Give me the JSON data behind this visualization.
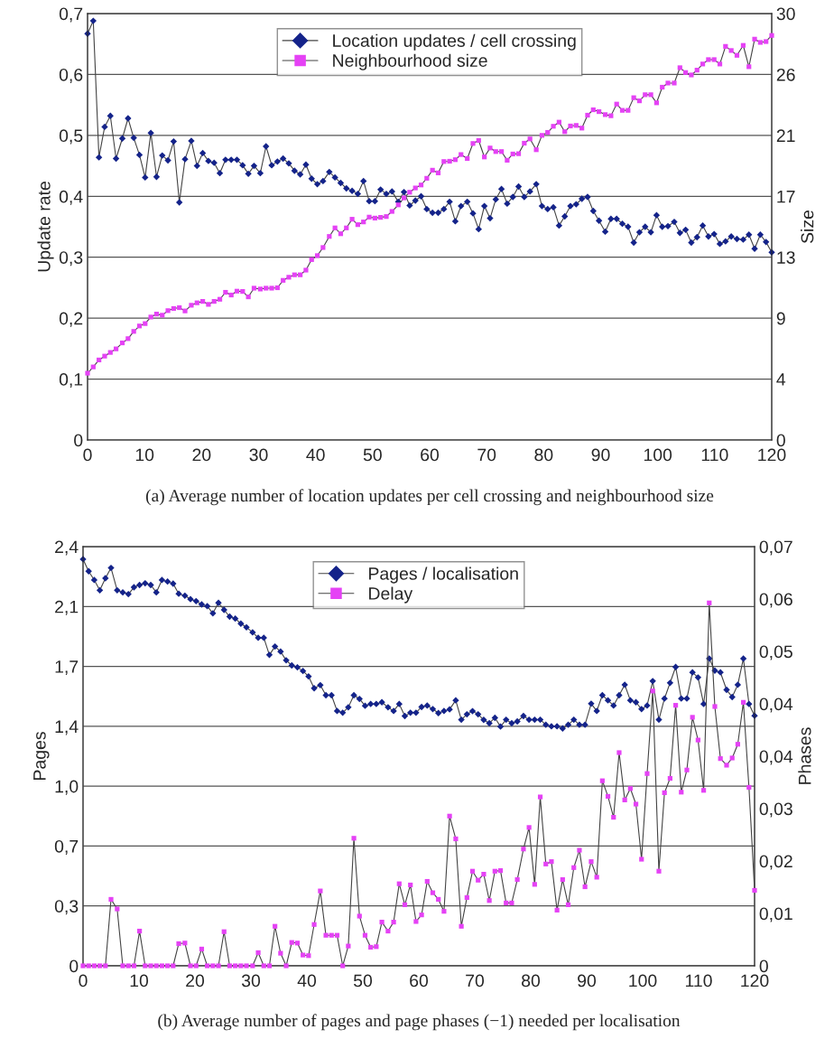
{
  "chart_data": [
    {
      "type": "line",
      "annotations": [
        "(a) Average number of location updates per cell crossing and neighbourhood size"
      ],
      "ylabel": "Update rate",
      "y2label": "Size",
      "legend": "top",
      "grid": "y",
      "xlim": [
        0,
        120
      ],
      "xticks": [
        0,
        10,
        20,
        30,
        40,
        50,
        60,
        70,
        80,
        90,
        100,
        110,
        120
      ],
      "ylim": [
        0,
        0.7
      ],
      "yticks": [
        0,
        {
          "value": 0.1,
          "label": "0,1"
        },
        {
          "value": 0.2,
          "label": "0,2"
        },
        {
          "value": 0.3,
          "label": "0,3"
        },
        {
          "value": 0.4,
          "label": "0,4"
        },
        {
          "value": 0.5,
          "label": "0,5"
        },
        {
          "value": 0.6,
          "label": "0,6"
        },
        {
          "value": 0.7,
          "label": "0,7"
        }
      ],
      "y2lim": [
        0,
        30
      ],
      "y2ticks": [
        0,
        {
          "value": 4.2857,
          "label": "4"
        },
        {
          "value": 8.5714,
          "label": "9"
        },
        {
          "value": 12.857,
          "label": "13"
        },
        {
          "value": 17.143,
          "label": "17"
        },
        {
          "value": 21.429,
          "label": "21"
        },
        {
          "value": 25.714,
          "label": "26"
        },
        30
      ],
      "x": [
        0,
        1,
        2,
        3,
        4,
        5,
        6.1,
        7.1,
        8.1,
        9.1,
        10.1,
        11.1,
        12.1,
        13.1,
        14.1,
        15.1,
        16.1,
        17.1,
        18.2,
        19.2,
        20.2,
        21.2,
        22.2,
        23.2,
        24.2,
        25.2,
        26.2,
        27.2,
        28.2,
        29.2,
        30.3,
        31.3,
        32.3,
        33.3,
        34.3,
        35.3,
        36.3,
        37.3,
        38.3,
        39.3,
        40.3,
        41.3,
        42.4,
        43.4,
        44.4,
        45.4,
        46.4,
        47.4,
        48.4,
        49.4,
        50.4,
        51.4,
        52.4,
        53.4,
        54.5,
        55.5,
        56.5,
        57.5,
        58.5,
        59.5,
        60.5,
        61.5,
        62.5,
        63.5,
        64.5,
        65.5,
        66.6,
        67.6,
        68.6,
        69.6,
        70.6,
        71.6,
        72.6,
        73.6,
        74.6,
        75.6,
        76.6,
        77.6,
        78.7,
        79.7,
        80.7,
        81.7,
        82.7,
        83.7,
        84.7,
        85.7,
        86.7,
        87.7,
        88.7,
        89.7,
        90.8,
        91.8,
        92.8,
        93.8,
        94.8,
        95.8,
        96.8,
        97.8,
        98.8,
        99.8,
        100.8,
        101.8,
        102.9,
        103.9,
        104.9,
        105.9,
        106.9,
        107.9,
        108.9,
        109.9,
        110.9,
        111.9,
        112.9,
        113.9,
        115,
        116,
        117,
        118,
        119,
        120
      ],
      "series": [
        {
          "name": "Location updates / cell crossing",
          "color": "#14238a",
          "marker": "diamond",
          "values": [
            0.667,
            0.688,
            0.464,
            0.514,
            0.532,
            0.462,
            0.495,
            0.528,
            0.496,
            0.468,
            0.431,
            0.504,
            0.432,
            0.467,
            0.459,
            0.49,
            0.39,
            0.461,
            0.491,
            0.45,
            0.471,
            0.458,
            0.455,
            0.438,
            0.46,
            0.46,
            0.46,
            0.451,
            0.437,
            0.45,
            0.438,
            0.482,
            0.451,
            0.457,
            0.462,
            0.454,
            0.442,
            0.436,
            0.452,
            0.429,
            0.42,
            0.425,
            0.44,
            0.431,
            0.422,
            0.413,
            0.409,
            0.404,
            0.425,
            0.392,
            0.392,
            0.411,
            0.404,
            0.408,
            0.391,
            0.407,
            0.385,
            0.393,
            0.4,
            0.379,
            0.373,
            0.373,
            0.379,
            0.391,
            0.359,
            0.384,
            0.391,
            0.372,
            0.346,
            0.384,
            0.364,
            0.395,
            0.412,
            0.388,
            0.399,
            0.416,
            0.399,
            0.408,
            0.42,
            0.384,
            0.379,
            0.382,
            0.352,
            0.367,
            0.384,
            0.387,
            0.396,
            0.399,
            0.376,
            0.36,
            0.342,
            0.363,
            0.363,
            0.355,
            0.35,
            0.324,
            0.341,
            0.35,
            0.341,
            0.369,
            0.35,
            0.351,
            0.358,
            0.34,
            0.345,
            0.324,
            0.333,
            0.352,
            0.334,
            0.338,
            0.322,
            0.326,
            0.334,
            0.33,
            0.329,
            0.337,
            0.314,
            0.337,
            0.325,
            0.308
          ]
        },
        {
          "name": "Neighbourhood size",
          "color": "#e542f5",
          "marker": "square",
          "axis": "y2",
          "values": [
            4.7,
            5.14,
            5.63,
            5.9,
            6.16,
            6.41,
            6.83,
            7.13,
            7.64,
            8.02,
            8.19,
            8.65,
            8.86,
            8.78,
            9.1,
            9.25,
            9.31,
            9.08,
            9.48,
            9.65,
            9.75,
            9.54,
            9.75,
            9.9,
            10.39,
            10.2,
            10.47,
            10.45,
            10.07,
            10.68,
            10.62,
            10.68,
            10.68,
            10.71,
            11.23,
            11.45,
            11.62,
            11.62,
            11.95,
            12.69,
            12.97,
            13.54,
            14.32,
            14.92,
            14.51,
            14.92,
            15.53,
            15.15,
            15.34,
            15.68,
            15.61,
            15.66,
            15.72,
            16.08,
            16.54,
            17.03,
            17.43,
            17.73,
            17.94,
            18.41,
            18.98,
            18.79,
            19.59,
            19.61,
            19.72,
            20.08,
            19.8,
            20.86,
            21.07,
            19.91,
            20.54,
            20.29,
            20.29,
            19.68,
            20.12,
            20.14,
            20.88,
            21.18,
            20.42,
            21.43,
            21.64,
            22.07,
            22.36,
            21.69,
            22.09,
            22.13,
            21.94,
            22.85,
            23.23,
            23.1,
            22.89,
            22.81,
            23.63,
            23.19,
            23.19,
            24.08,
            23.86,
            24.29,
            24.29,
            23.72,
            24.82,
            25.11,
            25.11,
            26.19,
            25.85,
            25.68,
            26.02,
            26.45,
            26.76,
            26.76,
            26.45,
            27.69,
            27.4,
            27.06,
            27.76,
            26.26,
            28.2,
            27.97,
            28.03,
            28.46
          ]
        }
      ]
    },
    {
      "type": "line",
      "annotations": [
        "(b) Average number of pages and page phases (−1) needed per localisation"
      ],
      "ylabel": "Pages",
      "y2label": "Phases",
      "legend": "top",
      "grid": "y",
      "xlim": [
        0,
        120
      ],
      "xticks": [
        0,
        10,
        20,
        30,
        40,
        50,
        60,
        70,
        80,
        90,
        100,
        110,
        120
      ],
      "ylim": [
        0,
        2.4
      ],
      "yticks": [
        0,
        {
          "value": 0.34286,
          "label": "0,3"
        },
        {
          "value": 0.68571,
          "label": "0,7"
        },
        {
          "value": 1.02857,
          "label": "1,0"
        },
        {
          "value": 1.37143,
          "label": "1,4"
        },
        {
          "value": 1.71429,
          "label": "1,7"
        },
        {
          "value": 2.05714,
          "label": "2,1"
        },
        {
          "value": 2.4,
          "label": "2,4"
        }
      ],
      "y2lim": [
        0,
        0.07
      ],
      "y2ticks": [
        0,
        {
          "value": 0.00875,
          "label": "0,01"
        },
        {
          "value": 0.0175,
          "label": "0,02"
        },
        {
          "value": 0.02625,
          "label": "0,03"
        },
        {
          "value": 0.035,
          "label": "0,04"
        },
        {
          "value": 0.04375,
          "label": "0,04"
        },
        {
          "value": 0.0525,
          "label": "0,05"
        },
        {
          "value": 0.06125,
          "label": "0,06"
        },
        {
          "value": 0.07,
          "label": "0,07"
        }
      ],
      "x": [
        0,
        1,
        2,
        3,
        4,
        5,
        6.1,
        7.1,
        8.1,
        9.1,
        10.1,
        11.1,
        12.1,
        13.1,
        14.1,
        15.1,
        16.1,
        17.1,
        18.2,
        19.2,
        20.2,
        21.2,
        22.2,
        23.2,
        24.2,
        25.2,
        26.2,
        27.2,
        28.2,
        29.2,
        30.3,
        31.3,
        32.3,
        33.3,
        34.3,
        35.3,
        36.3,
        37.3,
        38.3,
        39.3,
        40.3,
        41.3,
        42.4,
        43.4,
        44.4,
        45.4,
        46.4,
        47.4,
        48.4,
        49.4,
        50.4,
        51.4,
        52.4,
        53.4,
        54.5,
        55.5,
        56.5,
        57.5,
        58.5,
        59.5,
        60.5,
        61.5,
        62.5,
        63.5,
        64.5,
        65.5,
        66.6,
        67.6,
        68.6,
        69.6,
        70.6,
        71.6,
        72.6,
        73.6,
        74.6,
        75.6,
        76.6,
        77.6,
        78.7,
        79.7,
        80.7,
        81.7,
        82.7,
        83.7,
        84.7,
        85.7,
        86.7,
        87.7,
        88.7,
        89.7,
        90.8,
        91.8,
        92.8,
        93.8,
        94.8,
        95.8,
        96.8,
        97.8,
        98.8,
        99.8,
        100.8,
        101.8,
        102.9,
        103.9,
        104.9,
        105.9,
        106.9,
        107.9,
        108.9,
        109.9,
        110.9,
        111.9,
        112.9,
        113.9,
        115,
        116,
        117,
        118,
        119,
        120
      ],
      "series": [
        {
          "name": "Pages / localisation",
          "color": "#14238a",
          "marker": "diamond",
          "values": [
            2.328,
            2.259,
            2.209,
            2.15,
            2.219,
            2.278,
            2.15,
            2.138,
            2.128,
            2.167,
            2.18,
            2.19,
            2.18,
            2.138,
            2.209,
            2.2,
            2.188,
            2.13,
            2.119,
            2.099,
            2.088,
            2.069,
            2.059,
            2.018,
            2.078,
            2.038,
            1.999,
            1.988,
            1.959,
            1.938,
            1.909,
            1.878,
            1.878,
            1.78,
            1.828,
            1.799,
            1.749,
            1.72,
            1.709,
            1.688,
            1.657,
            1.589,
            1.607,
            1.549,
            1.549,
            1.459,
            1.449,
            1.48,
            1.549,
            1.528,
            1.489,
            1.499,
            1.499,
            1.509,
            1.48,
            1.459,
            1.499,
            1.43,
            1.449,
            1.449,
            1.482,
            1.49,
            1.47,
            1.447,
            1.459,
            1.468,
            1.52,
            1.409,
            1.44,
            1.458,
            1.44,
            1.408,
            1.389,
            1.42,
            1.37,
            1.409,
            1.389,
            1.399,
            1.43,
            1.409,
            1.409,
            1.409,
            1.38,
            1.371,
            1.371,
            1.359,
            1.38,
            1.409,
            1.38,
            1.38,
            1.501,
            1.459,
            1.549,
            1.52,
            1.49,
            1.549,
            1.609,
            1.52,
            1.509,
            1.47,
            1.49,
            1.63,
            1.409,
            1.53,
            1.62,
            1.711,
            1.53,
            1.53,
            1.68,
            1.651,
            1.499,
            1.759,
            1.69,
            1.68,
            1.58,
            1.539,
            1.609,
            1.759,
            1.499,
            1.432
          ]
        },
        {
          "name": "Delay",
          "color": "#e542f5",
          "marker": "square",
          "axis": "y2",
          "values": [
            0,
            0,
            0,
            0,
            0,
            0.0111,
            0.0095,
            0,
            0,
            0,
            0.0058,
            0,
            0,
            0,
            0,
            0,
            0,
            0.0037,
            0.0038,
            0,
            0,
            0.0028,
            0,
            0,
            0,
            0.0057,
            0,
            0,
            0,
            0,
            0,
            0.0022,
            0,
            0,
            0.0066,
            0.0021,
            0,
            0.0039,
            0.0038,
            0.0018,
            0.0017,
            0.0069,
            0.0125,
            0.0051,
            0.0051,
            0.0051,
            0,
            0.0033,
            0.0213,
            0.0083,
            0.0051,
            0.0031,
            0.0032,
            0.0073,
            0.0058,
            0.0073,
            0.0137,
            0.0102,
            0.0135,
            0.0074,
            0.0085,
            0.0141,
            0.0122,
            0.0111,
            0.0091,
            0.025,
            0.0212,
            0.0066,
            0.0114,
            0.0158,
            0.0143,
            0.0153,
            0.0109,
            0.0158,
            0.0159,
            0.0105,
            0.0105,
            0.0144,
            0.0195,
            0.0231,
            0.0136,
            0.0282,
            0.017,
            0.0174,
            0.0093,
            0.0144,
            0.0102,
            0.0164,
            0.0193,
            0.0132,
            0.0174,
            0.0148,
            0.0309,
            0.0283,
            0.0248,
            0.0356,
            0.0277,
            0.0296,
            0.027,
            0.0178,
            0.0321,
            0.0459,
            0.0158,
            0.0289,
            0.0313,
            0.0435,
            0.029,
            0.0327,
            0.0415,
            0.0377,
            0.0293,
            0.0606,
            0.0433,
            0.0346,
            0.0335,
            0.0347,
            0.037,
            0.044,
            0.0298,
            0.0126
          ]
        }
      ]
    }
  ]
}
